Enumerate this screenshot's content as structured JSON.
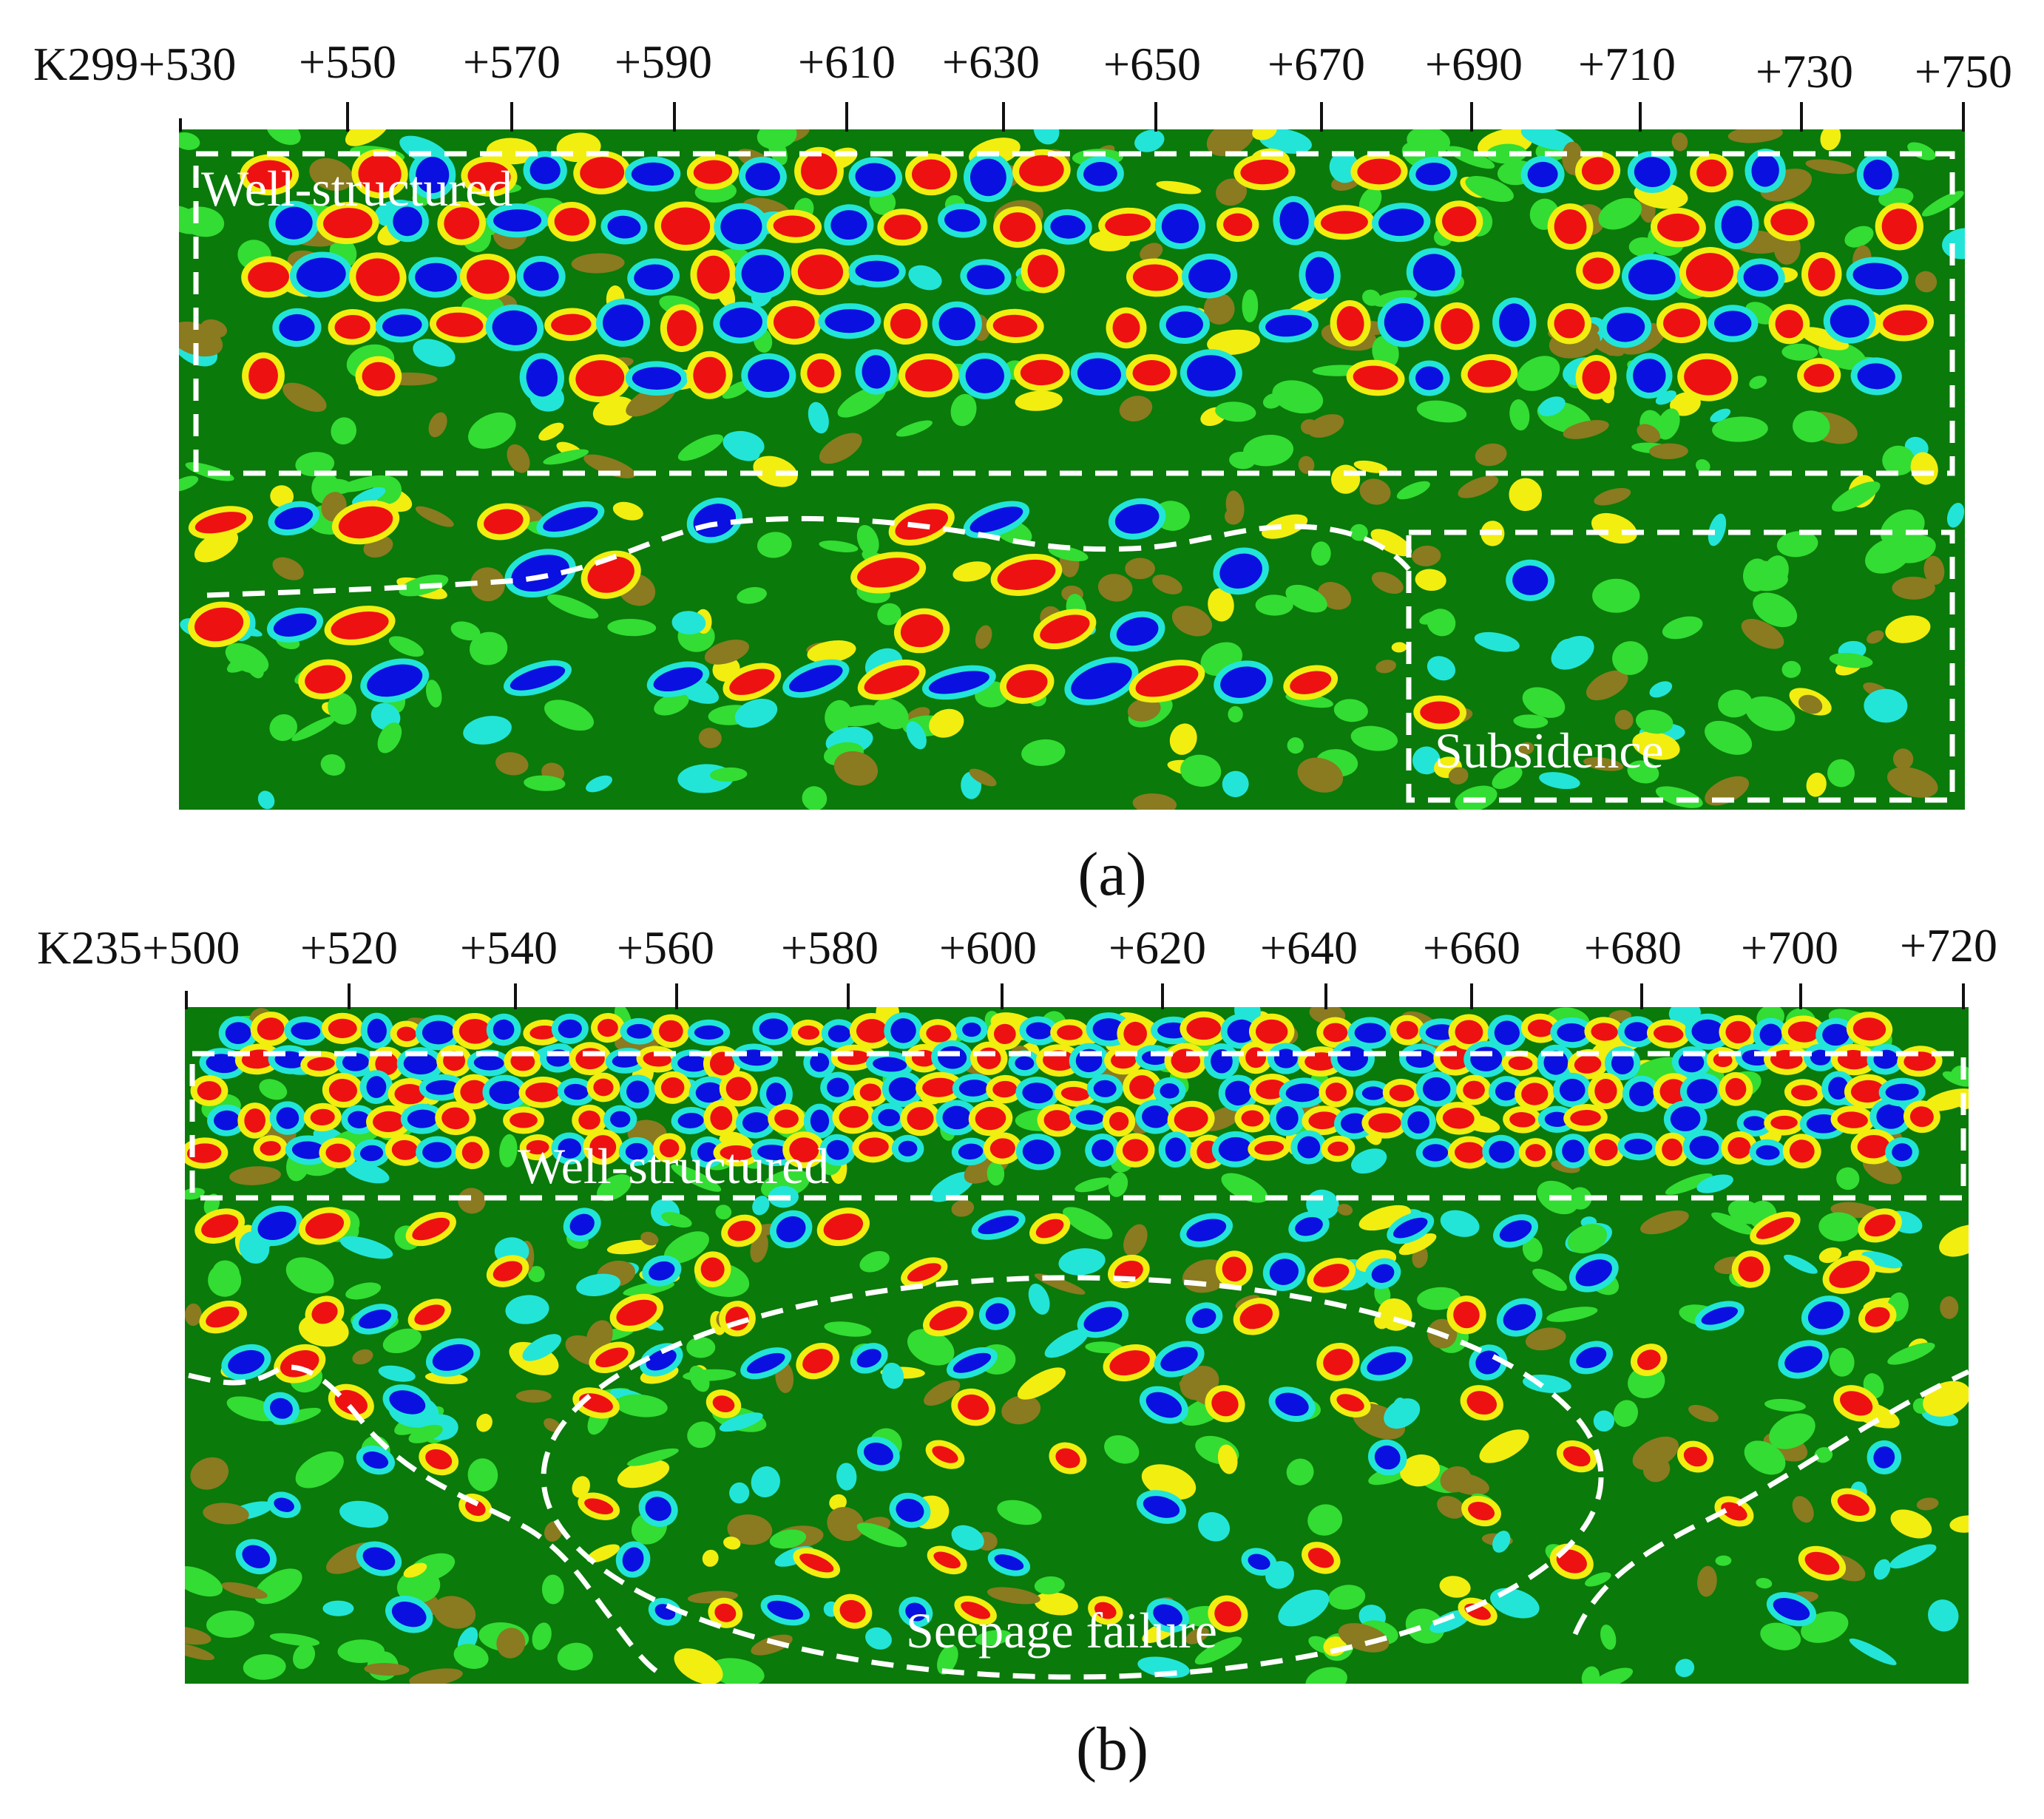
{
  "figure": {
    "panels": [
      {
        "id": "a",
        "caption": "(a)",
        "axis_labels": [
          "K299+530",
          "+550",
          "+570",
          "+590",
          "+610",
          "+630",
          "+650",
          "+670",
          "+690",
          "+710",
          "+730",
          "+750"
        ],
        "zones": [
          {
            "label": "Well-structured",
            "type": "rectangle"
          },
          {
            "label": "Subsidence",
            "type": "rectangle"
          }
        ]
      },
      {
        "id": "b",
        "caption": "(b)",
        "axis_labels": [
          "K235+500",
          "+520",
          "+540",
          "+560",
          "+580",
          "+600",
          "+620",
          "+640",
          "+660",
          "+680",
          "+700",
          "+720"
        ],
        "zones": [
          {
            "label": "Well-structured",
            "type": "rectangle"
          },
          {
            "label": "Seepage failure",
            "type": "ellipse"
          }
        ]
      }
    ],
    "colors": {
      "background": "#0a7a0a",
      "light_green": "#33dd33",
      "cyan": "#22e5d8",
      "blue": "#0a10e0",
      "red": "#ee1111",
      "yellow": "#f2ee10",
      "brown": "#8a7a20",
      "annotation": "#ffffff"
    }
  }
}
